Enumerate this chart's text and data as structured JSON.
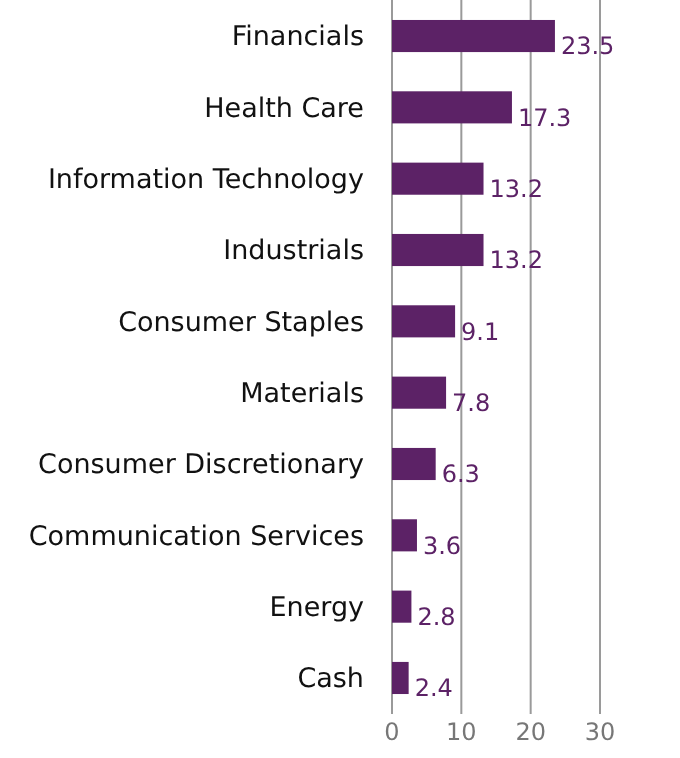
{
  "chart_data": {
    "type": "bar",
    "orientation": "horizontal",
    "categories": [
      "Financials",
      "Health Care",
      "Information Technology",
      "Industrials",
      "Consumer Staples",
      "Materials",
      "Consumer Discretionary",
      "Communication Services",
      "Energy",
      "Cash"
    ],
    "values": [
      23.5,
      17.3,
      13.2,
      13.2,
      9.1,
      7.8,
      6.3,
      3.6,
      2.8,
      2.4
    ],
    "color": "#5c2266",
    "xlim": [
      0,
      30
    ],
    "xticks": [
      0,
      10,
      20,
      30
    ],
    "grid": "x",
    "data_labels": true
  }
}
